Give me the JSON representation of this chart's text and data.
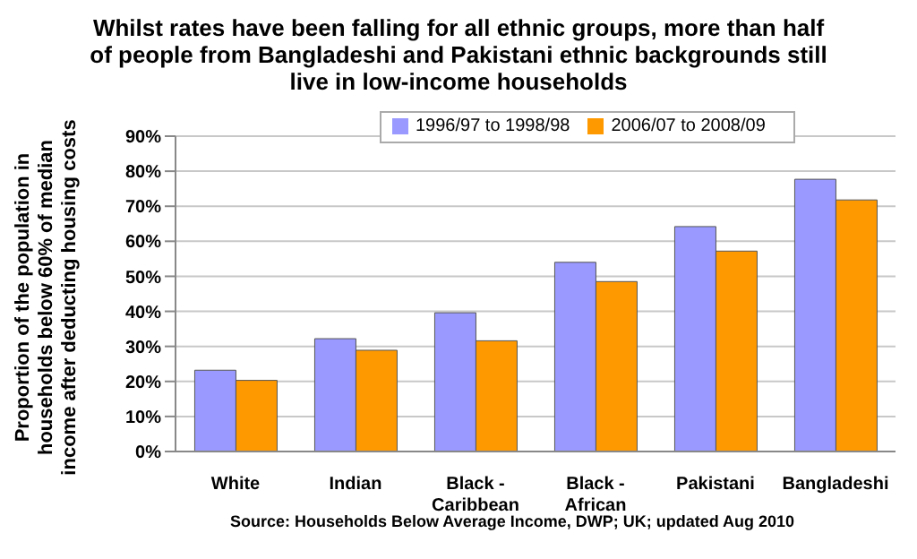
{
  "chart_data": {
    "type": "bar",
    "title": "Whilst rates have been falling for all ethnic groups, more than half of people from Bangladeshi and Pakistani ethnic backgrounds still live in low-income households",
    "ylabel": "Proportion of the population in households below 60% of median income after deducting housing costs",
    "annotations": [
      "Source: Households Below Average Income, DWP; UK; updated Aug 2010"
    ],
    "categories": [
      "White",
      "Indian",
      "Black - Caribbean",
      "Black - African",
      "Pakistani",
      "Bangladeshi"
    ],
    "series": [
      {
        "name": "1996/97 to 1998/98",
        "color": "#9999ff",
        "values": [
          23.2,
          32.2,
          39.6,
          54,
          64.2,
          77.7
        ]
      },
      {
        "name": "2006/07 to 2008/09",
        "color": "#ff9900",
        "values": [
          20.3,
          28.9,
          31.6,
          48.5,
          57.2,
          71.8
        ]
      }
    ],
    "ylim": [
      0,
      90
    ],
    "yticks": [
      {
        "value": 0,
        "label": "0%"
      },
      {
        "value": 10,
        "label": "10%"
      },
      {
        "value": 20,
        "label": "20%"
      },
      {
        "value": 30,
        "label": "30%"
      },
      {
        "value": 40,
        "label": "40%"
      },
      {
        "value": 50,
        "label": "50%"
      },
      {
        "value": 60,
        "label": "60%"
      },
      {
        "value": 70,
        "label": "70%"
      },
      {
        "value": 80,
        "label": "80%"
      },
      {
        "value": 90,
        "label": "90%"
      }
    ],
    "grid": "y",
    "legend": "top"
  }
}
